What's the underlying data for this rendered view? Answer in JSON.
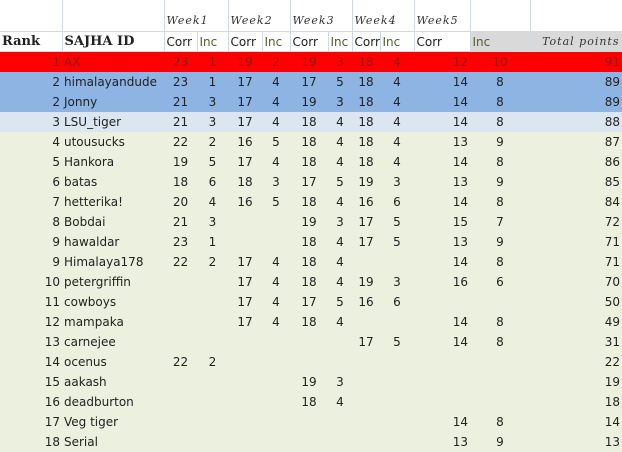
{
  "weeks": [
    "Week1",
    "Week2",
    "Week3",
    "Week4",
    "Week5"
  ],
  "headers": {
    "rank": "Rank",
    "id": "SAJHA ID",
    "corr": "Corr",
    "inc": "Inc",
    "total": "Total points"
  },
  "colors": {
    "first": "#ff0000",
    "second": "#8db4e2",
    "third": "#dce6f1",
    "rest": "#ebf1de"
  },
  "rows": [
    {
      "rank": "1",
      "id": "AX",
      "v": [
        "23",
        "1",
        "19",
        "2",
        "19",
        "3",
        "18",
        "4",
        "12",
        "10"
      ],
      "total": "91",
      "style": "red"
    },
    {
      "rank": "2",
      "id": "himalayandude",
      "v": [
        "23",
        "1",
        "17",
        "4",
        "17",
        "5",
        "18",
        "4",
        "14",
        "8"
      ],
      "total": "89",
      "style": "blue"
    },
    {
      "rank": "2",
      "id": "Jonny",
      "v": [
        "21",
        "3",
        "17",
        "4",
        "19",
        "3",
        "18",
        "4",
        "14",
        "8"
      ],
      "total": "89",
      "style": "blue"
    },
    {
      "rank": "3",
      "id": "LSU_tiger",
      "v": [
        "21",
        "3",
        "17",
        "4",
        "18",
        "4",
        "18",
        "4",
        "14",
        "8"
      ],
      "total": "88",
      "style": "lblue"
    },
    {
      "rank": "4",
      "id": "utousucks",
      "v": [
        "22",
        "2",
        "16",
        "5",
        "18",
        "4",
        "18",
        "4",
        "13",
        "9"
      ],
      "total": "87"
    },
    {
      "rank": "5",
      "id": "Hankora",
      "v": [
        "19",
        "5",
        "17",
        "4",
        "18",
        "4",
        "18",
        "4",
        "14",
        "8"
      ],
      "total": "86"
    },
    {
      "rank": "6",
      "id": "batas",
      "v": [
        "18",
        "6",
        "18",
        "3",
        "17",
        "5",
        "19",
        "3",
        "13",
        "9"
      ],
      "total": "85"
    },
    {
      "rank": "7",
      "id": "hetterika!",
      "v": [
        "20",
        "4",
        "16",
        "5",
        "18",
        "4",
        "16",
        "6",
        "14",
        "8"
      ],
      "total": "84"
    },
    {
      "rank": "8",
      "id": "Bobdai",
      "v": [
        "21",
        "3",
        "",
        "",
        "19",
        "3",
        "17",
        "5",
        "15",
        "7"
      ],
      "total": "72"
    },
    {
      "rank": "9",
      "id": "hawaldar",
      "v": [
        "23",
        "1",
        "",
        "",
        "18",
        "4",
        "17",
        "5",
        "13",
        "9"
      ],
      "total": "71"
    },
    {
      "rank": "9",
      "id": "Himalaya178",
      "v": [
        "22",
        "2",
        "17",
        "4",
        "18",
        "4",
        "",
        "",
        "14",
        "8"
      ],
      "total": "71"
    },
    {
      "rank": "10",
      "id": "petergriffin",
      "v": [
        "",
        "",
        "17",
        "4",
        "18",
        "4",
        "19",
        "3",
        "16",
        "6"
      ],
      "total": "70"
    },
    {
      "rank": "11",
      "id": "cowboys",
      "v": [
        "",
        "",
        "17",
        "4",
        "17",
        "5",
        "16",
        "6",
        "",
        ""
      ],
      "total": "50"
    },
    {
      "rank": "12",
      "id": "mampaka",
      "v": [
        "",
        "",
        "17",
        "4",
        "18",
        "4",
        "",
        "",
        "14",
        "8"
      ],
      "total": "49"
    },
    {
      "rank": "13",
      "id": "carnejee",
      "v": [
        "",
        "",
        "",
        "",
        "",
        "",
        "17",
        "5",
        "14",
        "8"
      ],
      "total": "31"
    },
    {
      "rank": "14",
      "id": "ocenus",
      "v": [
        "22",
        "2",
        "",
        "",
        "",
        "",
        "",
        "",
        "",
        ""
      ],
      "total": "22"
    },
    {
      "rank": "15",
      "id": "aakash",
      "v": [
        "",
        "",
        "",
        "",
        "19",
        "3",
        "",
        "",
        "",
        ""
      ],
      "total": "19"
    },
    {
      "rank": "16",
      "id": "deadburton",
      "v": [
        "",
        "",
        "",
        "",
        "18",
        "4",
        "",
        "",
        "",
        ""
      ],
      "total": "18"
    },
    {
      "rank": "17",
      "id": "Veg tiger",
      "v": [
        "",
        "",
        "",
        "",
        "",
        "",
        "",
        "",
        "14",
        "8"
      ],
      "total": "14"
    },
    {
      "rank": "18",
      "id": "Serial",
      "v": [
        "",
        "",
        "",
        "",
        "",
        "",
        "",
        "",
        "13",
        "9"
      ],
      "total": "13"
    }
  ]
}
